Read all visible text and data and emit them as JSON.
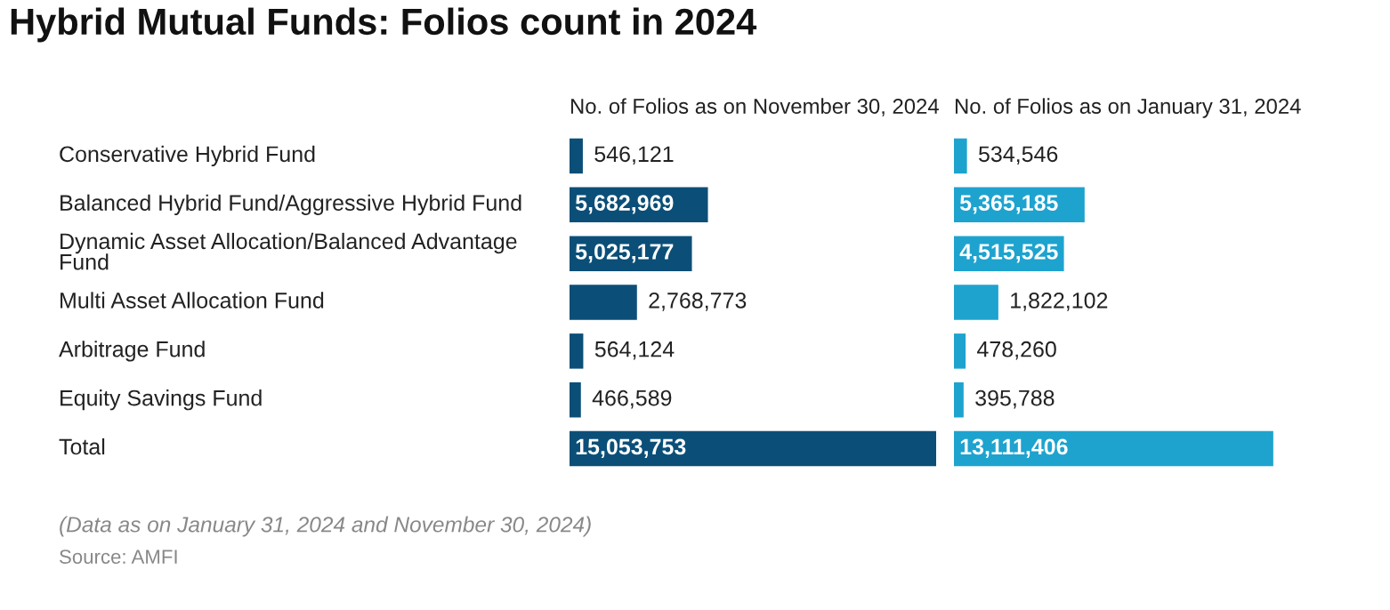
{
  "chart_data": [
    {
      "type": "bar",
      "orientation": "horizontal",
      "title": "Hybrid Mutual Funds: Folios count in 2024",
      "subtitle": "No. of Folios as on November 30, 2024",
      "categories": [
        "Conservative Hybrid Fund",
        "Balanced Hybrid Fund/Aggressive Hybrid Fund",
        "Dynamic Asset Allocation/Balanced Advantage Fund",
        "Multi Asset Allocation Fund",
        "Arbitrage Fund",
        "Equity Savings Fund",
        "Total"
      ],
      "values": [
        546121,
        5682969,
        5025177,
        2768773,
        564124,
        466589,
        15053753
      ],
      "value_labels": [
        "546,121",
        "5,682,969",
        "5,025,177",
        "2,768,773",
        "564,124",
        "466,589",
        "15,053,753"
      ],
      "color": "#0b4f78",
      "tick_labels": "y",
      "annotations": [
        "(Data as on January 31, 2024 and November 30, 2024)",
        "Source: AMFI"
      ]
    },
    {
      "type": "bar",
      "orientation": "horizontal",
      "subtitle": "No. of Folios as on January 31, 2024",
      "values": [
        534546,
        5365185,
        4515525,
        1822102,
        478260,
        395788,
        13111406
      ],
      "value_labels": [
        "534,546",
        "5,365,185",
        "4,515,525",
        "1,822,102",
        "478,260",
        "395,788",
        "13,111,406"
      ],
      "color": "#1ea3cf",
      "tick_labels": false
    }
  ]
}
